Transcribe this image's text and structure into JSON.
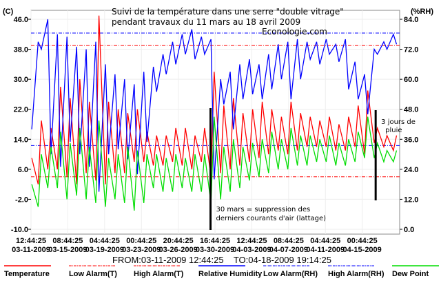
{
  "chart_data": {
    "type": "line",
    "title": "Suivi de la température dans une serre \"double vitrage\"",
    "subtitle": "pendant travaux du 11 mars au 18 avril 2009",
    "watermark": "Econologie.com",
    "ylabel_left": "(C)",
    "ylabel_right": "(%RH)",
    "ylim_left": [
      -10,
      46
    ],
    "ylim_right": [
      0,
      84
    ],
    "yticks_left": [
      "46.0",
      "38.0",
      "30.0",
      "22.0",
      "14.0",
      "6.0",
      "-2.0",
      "-10.0"
    ],
    "yticks_left_values": [
      46,
      38,
      30,
      22,
      14,
      6,
      -2,
      -10
    ],
    "yticks_right": [
      "84.0",
      "72.0",
      "60.0",
      "48.0",
      "36.0",
      "24.0",
      "12.0",
      "0.0"
    ],
    "yticks_right_values": [
      84,
      72,
      60,
      48,
      36,
      24,
      12,
      0
    ],
    "x_unit": "days since 03-11-2009 12:44:25",
    "xlim": [
      0,
      38.4
    ],
    "xticks_values": [
      0,
      3.833,
      7.667,
      11.5,
      15.333,
      19.167,
      23,
      26.833,
      30.667,
      34.5
    ],
    "xticks": [
      {
        "time": "12:44:25",
        "date": "03-11-2009"
      },
      {
        "time": "08:44:25",
        "date": "03-15-2009"
      },
      {
        "time": "04:44:25",
        "date": "03-19-2009"
      },
      {
        "time": "00:44:25",
        "date": "03-23-2009"
      },
      {
        "time": "20:44:25",
        "date": "03-26-2009"
      },
      {
        "time": "16:44:25",
        "date": "03-30-2009"
      },
      {
        "time": "12:44:25",
        "date": "04-03-2009"
      },
      {
        "time": "08:44:25",
        "date": "04-07-2009"
      },
      {
        "time": "04:44:25",
        "date": "04-11-2009"
      },
      {
        "time": "00:44:25",
        "date": "04-15-2009"
      }
    ],
    "range_label": "FROM:03-11-2009 12:44:25    TO:04-18-2009 19:14:25",
    "grid": true,
    "legend_position": "bottom",
    "alarms": {
      "high_t": 39,
      "low_t": 4,
      "high_rh": 78.5,
      "low_rh": 33.5
    },
    "series": [
      {
        "name": "Temperature",
        "color": "#ff0000",
        "axis": "left",
        "daily_max": [
          9,
          19,
          17,
          28,
          25,
          30,
          24,
          47,
          24,
          22,
          21,
          22,
          16,
          15,
          15,
          17,
          17,
          15,
          17,
          32,
          23,
          25,
          21,
          22,
          24,
          22,
          20,
          24,
          21,
          20,
          19,
          20,
          18,
          20,
          23,
          27,
          17,
          15,
          15
        ],
        "daily_min": [
          2,
          6,
          6,
          4,
          2,
          5,
          3,
          2,
          5,
          5,
          8,
          8,
          7,
          7,
          8,
          7,
          6,
          8,
          4,
          5,
          6,
          7,
          8,
          9,
          10,
          11,
          10,
          11,
          12,
          12,
          12,
          11,
          11,
          12,
          10,
          13,
          12,
          11,
          12
        ]
      },
      {
        "name": "Relative Humidity",
        "color": "#0000ff",
        "axis": "right",
        "daily_max": [
          75,
          84,
          78,
          77,
          73,
          72,
          75,
          66,
          62,
          60,
          58,
          63,
          65,
          70,
          75,
          78,
          80,
          77,
          76,
          60,
          63,
          66,
          68,
          66,
          70,
          74,
          75,
          76,
          75,
          75,
          76,
          74,
          76,
          67,
          62,
          72,
          75,
          78,
          76
        ],
        "daily_min": [
          40,
          72,
          30,
          25,
          35,
          30,
          25,
          15,
          30,
          32,
          28,
          22,
          35,
          55,
          62,
          66,
          70,
          68,
          70,
          20,
          50,
          40,
          52,
          54,
          52,
          56,
          60,
          52,
          60,
          68,
          66,
          70,
          67,
          56,
          52,
          46,
          70,
          72,
          74
        ]
      },
      {
        "name": "Dew Point",
        "color": "#00dd00",
        "axis": "left",
        "daily_max": [
          2,
          10,
          12,
          16,
          13,
          17,
          12,
          19,
          9,
          10,
          12,
          11,
          10,
          10,
          9,
          10,
          9,
          10,
          10,
          20,
          12,
          14,
          12,
          13,
          14,
          16,
          14,
          17,
          15,
          15,
          14,
          15,
          13,
          14,
          16,
          20,
          13,
          11,
          11
        ],
        "daily_min": [
          -4,
          1,
          1,
          -2,
          -1,
          -2,
          -3,
          -4,
          -2,
          -3,
          -5,
          -3,
          1,
          0,
          0,
          1,
          0,
          0,
          -3,
          -2,
          0,
          1,
          3,
          4,
          5,
          6,
          6,
          7,
          7,
          8,
          8,
          7,
          7,
          8,
          9,
          9,
          8,
          8,
          9
        ]
      }
    ],
    "annotations": [
      {
        "day": 18.7,
        "line1": "30 mars = suppression des",
        "line2": "derniers courants d'air (lattage)"
      },
      {
        "day": 35.9,
        "line1": "3 jours de",
        "line2": "pluie"
      }
    ],
    "legend": [
      {
        "label": "Temperature",
        "color": "#ff0000",
        "style": "solid"
      },
      {
        "label": "Low Alarm(T)",
        "color": "#ff0000",
        "style": "dashdot"
      },
      {
        "label": "High Alarm(T)",
        "color": "#ff0000",
        "style": "dashdot"
      },
      {
        "label": "Relative Humidity",
        "color": "#0000ff",
        "style": "solid"
      },
      {
        "label": "Low Alarm(RH)",
        "color": "#0000ff",
        "style": "dashdot"
      },
      {
        "label": "High Alarm(RH)",
        "color": "#0000ff",
        "style": "dashdot"
      },
      {
        "label": "Dew Point",
        "color": "#00dd00",
        "style": "solid"
      }
    ]
  }
}
